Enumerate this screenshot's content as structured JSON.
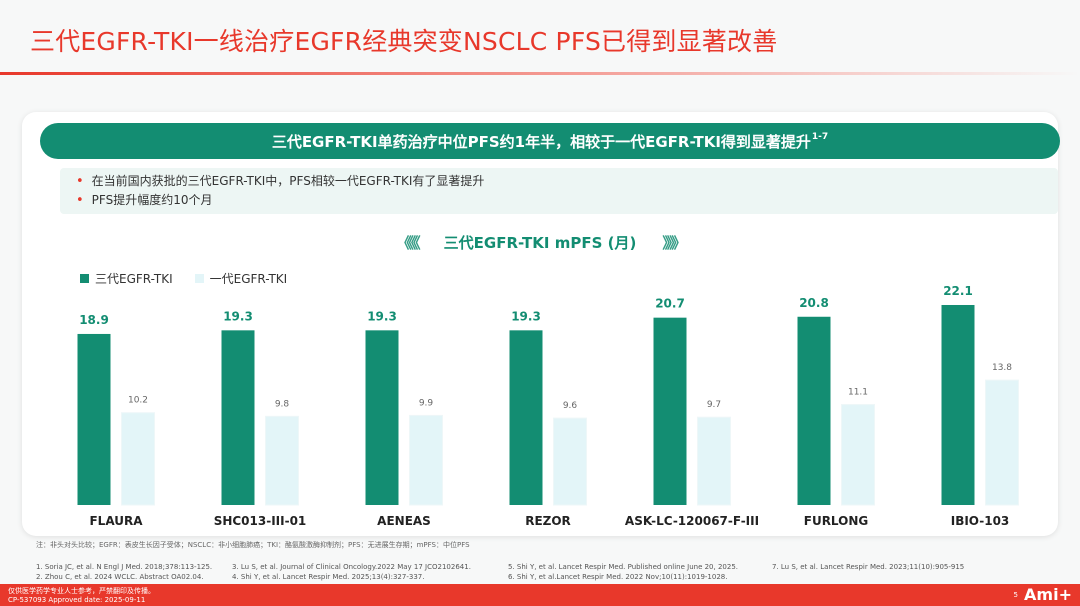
{
  "slide": {
    "title": "三代EGFR-TKI一线治疗EGFR经典突变NSCLC PFS已得到显著改善",
    "banner_text": "三代EGFR-TKI单药治疗中位PFS约1年半，相较于一代EGFR-TKI得到显著提升",
    "banner_sup": "1-7",
    "bullets": [
      "在当前国内获批的三代EGFR-TKI中，PFS相较一代EGFR-TKI有了显著提升",
      "PFS提升幅度约10个月"
    ],
    "footnote": "注：非头对头比较；EGFR：表皮生长因子受体；NSCLC：非小细胞肺癌；TKI：酪氨酸激酶抑制剂；PFS：无进展生存期；mPFS：中位PFS",
    "references": {
      "col1": [
        "1. Soria JC, et al. N Engl J Med. 2018;378:113-125.",
        "2. Zhou C, et al. 2024 WCLC. Abstract OA02.04."
      ],
      "col2": [
        "3. Lu S, et al. Journal of Clinical Oncology.2022 May 17 JCO2102641.",
        "4. Shi Y, et al. Lancet Respir Med. 2025;13(4):327-337."
      ],
      "col3": [
        "5. Shi Y, et al. Lancet Respir Med. Published online June 20, 2025.",
        "6. Shi Y, et al.Lancet Respir Med. 2022 Nov;10(11):1019-1028."
      ],
      "col4": [
        "7. Lu S, et al. Lancet Respir Med. 2023;11(10):905-915"
      ]
    },
    "footer_left": [
      "仅供医学药学专业人士参考，严禁翻印及传播。",
      "CP-537093 Approved date: 2025-09-11"
    ],
    "page_number": "5",
    "brand": "Ami+"
  },
  "colors": {
    "accent_red": "#e8382b",
    "third_gen": "#138d72",
    "first_gen": "#e3f5f8"
  },
  "chart_data": {
    "type": "bar",
    "title": "三代EGFR-TKI mPFS (月)",
    "title_left_deco": "《《《",
    "title_right_deco": "》》》",
    "categories": [
      "FLAURA",
      "SHC013-III-01",
      "AENEAS",
      "REZOR",
      "ASK-LC-120067-F-III",
      "FURLONG",
      "IBIO-103"
    ],
    "series": [
      {
        "name": "三代EGFR-TKI",
        "values": [
          18.9,
          19.3,
          19.3,
          19.3,
          20.7,
          20.8,
          22.1
        ],
        "color": "#138d72"
      },
      {
        "name": "一代EGFR-TKI",
        "values": [
          10.2,
          9.8,
          9.9,
          9.6,
          9.7,
          11.1,
          13.8
        ],
        "color": "#e3f5f8"
      }
    ],
    "value_labels": [
      [
        "18.9",
        "19.3",
        "19.3",
        "19.3",
        "20.7",
        "20.8",
        "22.1"
      ],
      [
        "10.2",
        "9.8",
        "9.9",
        "9.6",
        "9.7",
        "11.1",
        "13.8"
      ]
    ],
    "ylim": [
      0,
      25
    ],
    "legend_position": "top-left",
    "grid": false
  }
}
